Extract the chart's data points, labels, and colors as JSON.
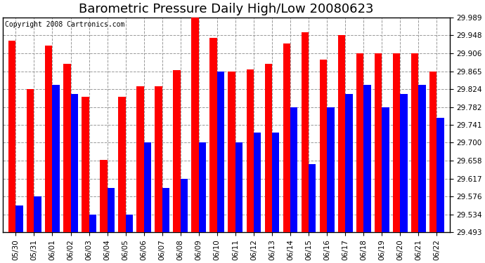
{
  "title": "Barometric Pressure Daily High/Low 20080623",
  "copyright": "Copyright 2008 Cartronics.com",
  "categories": [
    "05/30",
    "05/31",
    "06/01",
    "06/02",
    "06/03",
    "06/04",
    "06/05",
    "06/06",
    "06/07",
    "06/08",
    "06/09",
    "06/10",
    "06/11",
    "06/12",
    "06/13",
    "06/14",
    "06/15",
    "06/16",
    "06/17",
    "06/18",
    "06/19",
    "06/20",
    "06/21",
    "06/22"
  ],
  "highs": [
    29.935,
    29.824,
    29.924,
    29.882,
    29.806,
    29.66,
    29.806,
    29.83,
    29.83,
    29.868,
    29.989,
    29.942,
    29.865,
    29.87,
    29.882,
    29.93,
    29.955,
    29.892,
    29.948,
    29.906,
    29.906,
    29.906,
    29.906,
    29.865
  ],
  "lows": [
    29.555,
    29.576,
    29.833,
    29.812,
    29.534,
    29.596,
    29.534,
    29.7,
    29.596,
    29.617,
    29.7,
    29.865,
    29.7,
    29.724,
    29.724,
    29.782,
    29.651,
    29.782,
    29.812,
    29.834,
    29.782,
    29.812,
    29.834,
    29.758
  ],
  "high_color": "#ff0000",
  "low_color": "#0000ff",
  "bg_color": "#ffffff",
  "plot_bg_color": "#ffffff",
  "grid_color": "#999999",
  "yticks": [
    29.493,
    29.534,
    29.576,
    29.617,
    29.658,
    29.7,
    29.741,
    29.782,
    29.824,
    29.865,
    29.906,
    29.948,
    29.989
  ],
  "ymin": 29.493,
  "ymax": 29.989,
  "bar_width": 0.4,
  "title_fontsize": 13,
  "tick_fontsize": 7.5,
  "copyright_fontsize": 7
}
